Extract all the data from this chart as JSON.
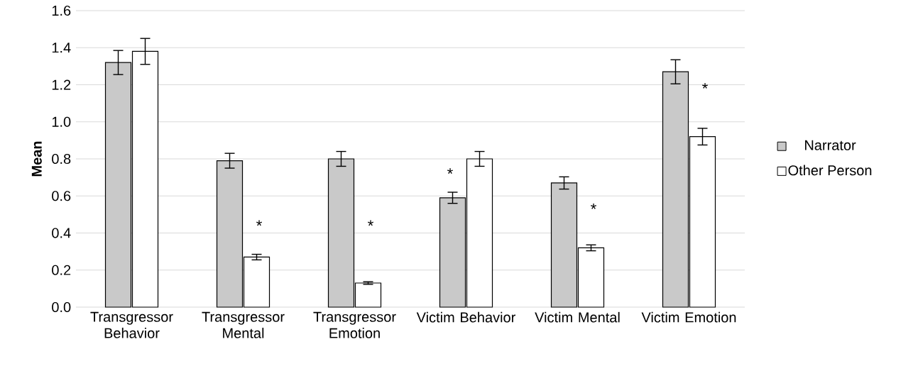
{
  "chart_data": {
    "type": "bar",
    "ylabel": "Mean",
    "categories": [
      "Transgressor Behavior",
      "Transgressor Mental",
      "Transgressor Emotion",
      "Victim Behavior",
      "Victim Mental",
      "Victim Emotion"
    ],
    "series": [
      {
        "name": "Narrator",
        "color": "#c9c9c9",
        "values": [
          1.32,
          0.79,
          0.8,
          0.59,
          0.67,
          1.27
        ],
        "errors": [
          0.065,
          0.04,
          0.04,
          0.03,
          0.033,
          0.065
        ]
      },
      {
        "name": "Other Person",
        "color": "#ffffff",
        "values": [
          1.38,
          0.27,
          0.13,
          0.8,
          0.32,
          0.92
        ],
        "errors": [
          0.07,
          0.015,
          0.007,
          0.04,
          0.016,
          0.045
        ]
      }
    ],
    "ylim": [
      0,
      1.6
    ],
    "yticks": [
      {
        "value": 0,
        "label": "0.0"
      },
      {
        "value": 0.2,
        "label": "0.2"
      },
      {
        "value": 0.4,
        "label": "0.4"
      },
      {
        "value": 0.6,
        "label": "0.6"
      },
      {
        "value": 0.8,
        "label": "0.8"
      },
      {
        "value": 1.0,
        "label": "1.0"
      },
      {
        "value": 1.2,
        "label": "1.2"
      },
      {
        "value": 1.4,
        "label": "1.4"
      },
      {
        "value": 1.6,
        "label": "1.6"
      }
    ],
    "grid": "y",
    "legend": "right",
    "annotations": [
      {
        "text": "*",
        "x": "Transgressor Mental",
        "y": 0.44
      },
      {
        "text": "*",
        "x": "Transgressor Emotion",
        "y": 0.44
      },
      {
        "text": "*",
        "x": "Victim Behavior",
        "y": 0.72
      },
      {
        "text": "*",
        "x": "Victim Mental",
        "y": 0.53
      },
      {
        "text": "*",
        "x": "Victim Emotion",
        "y": 1.18
      }
    ]
  }
}
